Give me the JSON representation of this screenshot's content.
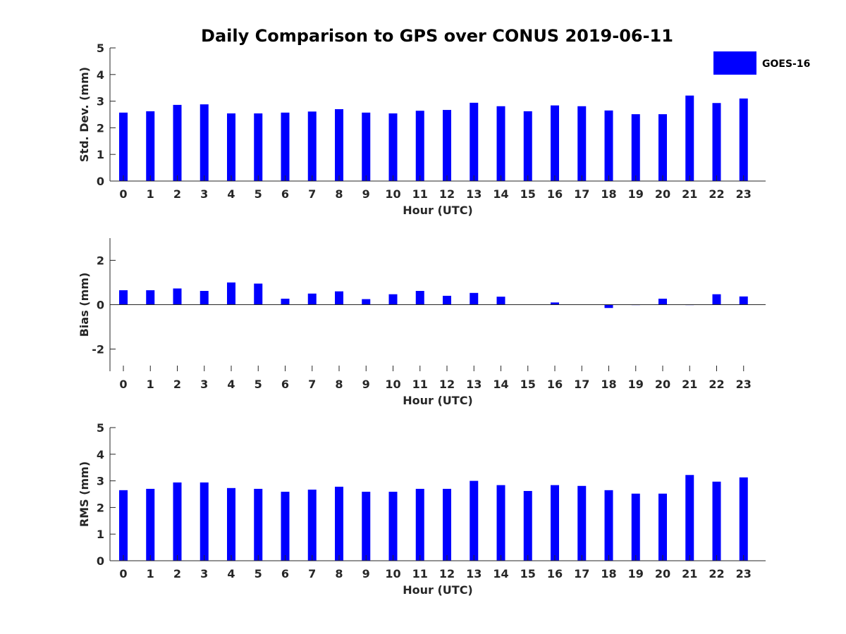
{
  "chart_data": {
    "type": "bar",
    "title": "Daily Comparison to GPS over CONUS 2019-06-11",
    "legend": {
      "label": "GOES-16",
      "color": "#0000ff",
      "placement": "top-right"
    },
    "panels": [
      {
        "id": "std",
        "type": "bar",
        "xlabel": "Hour (UTC)",
        "ylabel": "Std. Dev. (mm)",
        "ylim": [
          0,
          5
        ],
        "yticks": [
          0,
          1,
          2,
          3,
          4,
          5
        ],
        "ytick_labels": [
          "0",
          "1",
          "2",
          "3",
          "4",
          "5"
        ],
        "categories": [
          "0",
          "1",
          "2",
          "3",
          "4",
          "5",
          "6",
          "7",
          "8",
          "9",
          "10",
          "11",
          "12",
          "13",
          "14",
          "15",
          "16",
          "17",
          "18",
          "19",
          "20",
          "21",
          "22",
          "23"
        ],
        "series": [
          {
            "name": "GOES-16",
            "values": [
              2.57,
              2.62,
              2.86,
              2.88,
              2.54,
              2.54,
              2.57,
              2.61,
              2.7,
              2.57,
              2.54,
              2.64,
              2.67,
              2.94,
              2.81,
              2.62,
              2.84,
              2.81,
              2.65,
              2.51,
              2.51,
              3.21,
              2.93,
              3.1
            ]
          }
        ]
      },
      {
        "id": "bias",
        "type": "bar",
        "xlabel": "Hour (UTC)",
        "ylabel": "Bias (mm)",
        "ylim": [
          -3,
          3
        ],
        "yticks": [
          -2,
          0,
          2
        ],
        "ytick_labels": [
          "-2",
          "0",
          "2"
        ],
        "categories": [
          "0",
          "1",
          "2",
          "3",
          "4",
          "5",
          "6",
          "7",
          "8",
          "9",
          "10",
          "11",
          "12",
          "13",
          "14",
          "15",
          "16",
          "17",
          "18",
          "19",
          "20",
          "21",
          "22",
          "23"
        ],
        "series": [
          {
            "name": "GOES-16",
            "values": [
              0.65,
              0.65,
              0.73,
              0.62,
              1.0,
              0.95,
              0.27,
              0.5,
              0.6,
              0.25,
              0.47,
              0.62,
              0.4,
              0.53,
              0.36,
              0.0,
              0.1,
              0.0,
              -0.15,
              -0.02,
              0.27,
              -0.02,
              0.47,
              0.37
            ]
          }
        ]
      },
      {
        "id": "rms",
        "type": "bar",
        "xlabel": "Hour (UTC)",
        "ylabel": "RMS (mm)",
        "ylim": [
          0,
          5
        ],
        "yticks": [
          0,
          1,
          2,
          3,
          4,
          5
        ],
        "ytick_labels": [
          "0",
          "1",
          "2",
          "3",
          "4",
          "5"
        ],
        "categories": [
          "0",
          "1",
          "2",
          "3",
          "4",
          "5",
          "6",
          "7",
          "8",
          "9",
          "10",
          "11",
          "12",
          "13",
          "14",
          "15",
          "16",
          "17",
          "18",
          "19",
          "20",
          "21",
          "22",
          "23"
        ],
        "series": [
          {
            "name": "GOES-16",
            "values": [
              2.65,
              2.7,
              2.94,
              2.94,
              2.73,
              2.7,
              2.59,
              2.67,
              2.78,
              2.59,
              2.59,
              2.7,
              2.7,
              3.0,
              2.84,
              2.62,
              2.84,
              2.81,
              2.65,
              2.52,
              2.52,
              3.22,
              2.97,
              3.13
            ]
          }
        ]
      }
    ]
  }
}
